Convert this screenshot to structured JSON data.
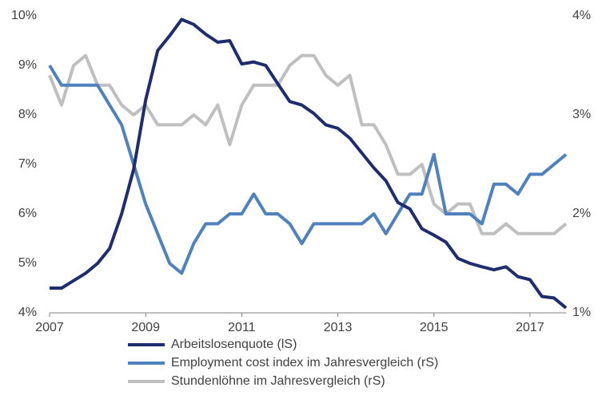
{
  "chart_data": {
    "type": "line",
    "x": [
      2007,
      2007.25,
      2007.5,
      2007.75,
      2008,
      2008.25,
      2008.5,
      2008.75,
      2009,
      2009.25,
      2009.5,
      2009.75,
      2010,
      2010.25,
      2010.5,
      2010.75,
      2011,
      2011.25,
      2011.5,
      2011.75,
      2012,
      2012.25,
      2012.5,
      2012.75,
      2013,
      2013.25,
      2013.5,
      2013.75,
      2014,
      2014.25,
      2014.5,
      2014.75,
      2015,
      2015.25,
      2015.5,
      2015.75,
      2016,
      2016.25,
      2016.5,
      2016.75,
      2017,
      2017.25,
      2017.5,
      2017.75
    ],
    "xlim": [
      2007,
      2017.75
    ],
    "xticks": [
      2007,
      2009,
      2011,
      2013,
      2015,
      2017
    ],
    "ylim": [
      4,
      10
    ],
    "yticks": [
      {
        "value": 4,
        "label": "4%"
      },
      {
        "value": 5,
        "label": "5%"
      },
      {
        "value": 6,
        "label": "6%"
      },
      {
        "value": 7,
        "label": "7%"
      },
      {
        "value": 8,
        "label": "8%"
      },
      {
        "value": 9,
        "label": "9%"
      },
      {
        "value": 10,
        "label": "10%"
      }
    ],
    "y2lim": [
      1,
      4
    ],
    "y2ticks": [
      {
        "value": 1,
        "label": "1%"
      },
      {
        "value": 2,
        "label": "2%"
      },
      {
        "value": 3,
        "label": "3%"
      },
      {
        "value": 4,
        "label": "4%"
      }
    ],
    "legend": "bottom",
    "series": [
      {
        "name": "Arbeitslosenquote (lS)",
        "color": "#1f2d6e",
        "values": [
          4.5,
          4.5,
          4.65,
          4.8,
          5.0,
          5.3,
          6.0,
          6.9,
          8.3,
          9.3,
          9.6,
          9.93,
          9.83,
          9.63,
          9.47,
          9.5,
          9.03,
          9.07,
          9.0,
          8.63,
          8.27,
          8.2,
          8.03,
          7.8,
          7.73,
          7.53,
          7.23,
          6.93,
          6.67,
          6.23,
          6.1,
          5.7,
          5.57,
          5.43,
          5.1,
          5.0,
          4.93,
          4.87,
          4.93,
          4.73,
          4.67,
          4.33,
          4.3,
          4.1
        ]
      },
      {
        "name": "Employment cost index im Jahresvergleich (rS)",
        "color": "#4f81bd",
        "axis": "y2",
        "values": [
          3.5,
          3.3,
          3.3,
          3.3,
          3.3,
          3.1,
          2.9,
          2.5,
          2.1,
          1.8,
          1.5,
          1.4,
          1.7,
          1.9,
          1.9,
          2.0,
          2.0,
          2.2,
          2.0,
          2.0,
          1.9,
          1.7,
          1.9,
          1.9,
          1.9,
          1.9,
          1.9,
          2.0,
          1.8,
          2.0,
          2.2,
          2.2,
          2.6,
          2.0,
          2.0,
          2.0,
          1.9,
          2.3,
          2.3,
          2.2,
          2.4,
          2.4,
          2.5,
          2.6
        ]
      },
      {
        "name": "Stundenlöhne im Jahresvergleich (rS)",
        "color": "#bfbfbf",
        "axis": "y2",
        "values": [
          3.4,
          3.1,
          3.5,
          3.6,
          3.3,
          3.3,
          3.1,
          3.0,
          3.1,
          2.9,
          2.9,
          2.9,
          3.0,
          2.9,
          3.1,
          2.7,
          3.1,
          3.3,
          3.3,
          3.3,
          3.5,
          3.6,
          3.6,
          3.4,
          3.3,
          3.4,
          2.9,
          2.9,
          2.7,
          2.4,
          2.4,
          2.5,
          2.1,
          2.0,
          2.1,
          2.1,
          1.8,
          1.8,
          1.9,
          1.8,
          1.8,
          1.8,
          1.8,
          1.9
        ]
      }
    ]
  }
}
